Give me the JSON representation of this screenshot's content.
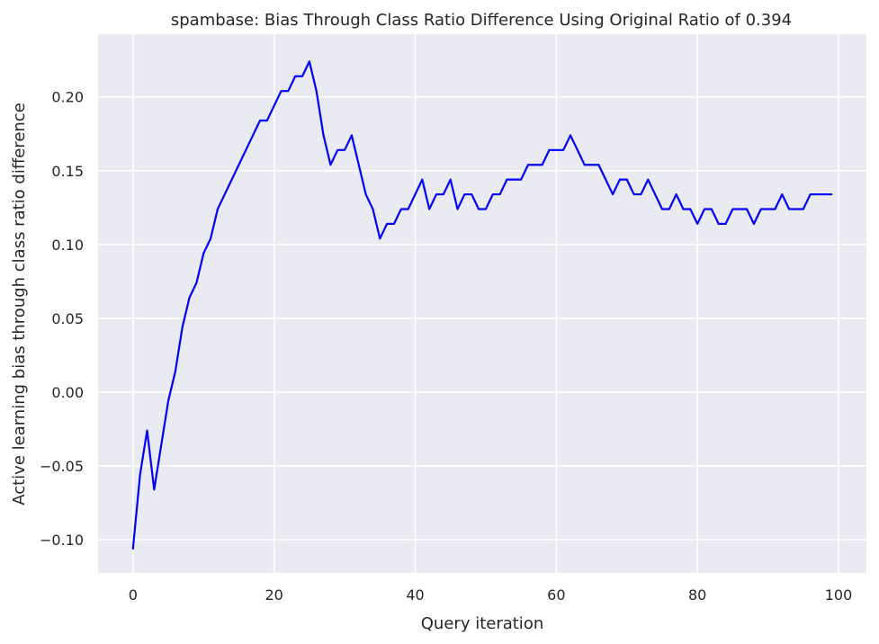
{
  "chart_data": {
    "type": "line",
    "title": "spambase: Bias Through Class Ratio Difference Using Original Ratio of 0.394",
    "xlabel": "Query iteration",
    "ylabel": "Active learning bias through class ratio difference",
    "xlim": [
      -4.95,
      103.95
    ],
    "ylim": [
      -0.1225,
      0.2425
    ],
    "xticks": [
      0,
      20,
      40,
      60,
      80,
      100
    ],
    "xtick_labels": [
      "0",
      "20",
      "40",
      "60",
      "80",
      "100"
    ],
    "yticks": [
      -0.1,
      -0.05,
      0.0,
      0.05,
      0.1,
      0.15,
      0.2
    ],
    "ytick_labels": [
      "−0.10",
      "−0.05",
      "0.00",
      "0.05",
      "0.10",
      "0.15",
      "0.20"
    ],
    "grid": true,
    "legend": "none",
    "colors": {
      "background": "#eaeaf2",
      "grid": "#ffffff",
      "line": "#0000ff"
    },
    "series": [
      {
        "x": [
          0,
          1,
          2,
          3,
          4,
          5,
          6,
          7,
          8,
          9,
          10,
          11,
          12,
          13,
          14,
          15,
          16,
          17,
          18,
          19,
          20,
          21,
          22,
          23,
          24,
          25,
          26,
          27,
          28,
          29,
          30,
          31,
          32,
          33,
          34,
          35,
          36,
          37,
          38,
          39,
          40,
          41,
          42,
          43,
          44,
          45,
          46,
          47,
          48,
          49,
          50,
          51,
          52,
          53,
          54,
          55,
          56,
          57,
          58,
          59,
          60,
          61,
          62,
          63,
          64,
          65,
          66,
          67,
          68,
          69,
          70,
          71,
          72,
          73,
          74,
          75,
          76,
          77,
          78,
          79,
          80,
          81,
          82,
          83,
          84,
          85,
          86,
          87,
          88,
          89,
          90,
          91,
          92,
          93,
          94,
          95,
          96,
          97,
          98,
          99
        ],
        "values": [
          -0.106,
          -0.056,
          -0.026,
          -0.066,
          -0.036,
          -0.006,
          0.014,
          0.044,
          0.064,
          0.074,
          0.094,
          0.104,
          0.124,
          0.134,
          0.144,
          0.154,
          0.164,
          0.174,
          0.184,
          0.184,
          0.194,
          0.204,
          0.204,
          0.214,
          0.214,
          0.224,
          0.204,
          0.174,
          0.154,
          0.164,
          0.164,
          0.174,
          0.154,
          0.134,
          0.124,
          0.104,
          0.114,
          0.114,
          0.124,
          0.124,
          0.134,
          0.144,
          0.124,
          0.134,
          0.134,
          0.144,
          0.124,
          0.134,
          0.134,
          0.124,
          0.124,
          0.134,
          0.134,
          0.144,
          0.144,
          0.144,
          0.154,
          0.154,
          0.154,
          0.164,
          0.164,
          0.164,
          0.174,
          0.164,
          0.154,
          0.154,
          0.154,
          0.144,
          0.134,
          0.144,
          0.144,
          0.134,
          0.134,
          0.144,
          0.134,
          0.124,
          0.124,
          0.134,
          0.124,
          0.124,
          0.114,
          0.124,
          0.124,
          0.114,
          0.114,
          0.124,
          0.124,
          0.124,
          0.114,
          0.124,
          0.124,
          0.124,
          0.134,
          0.124,
          0.124,
          0.124,
          0.134,
          0.134,
          0.134,
          0.134
        ]
      }
    ]
  }
}
